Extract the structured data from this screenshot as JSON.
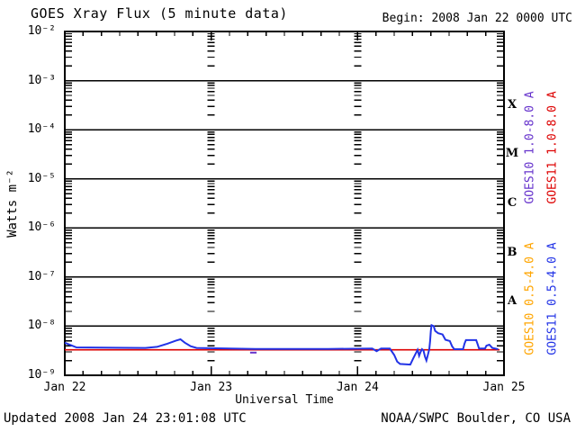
{
  "header": {
    "title": "GOES Xray Flux (5 minute data)",
    "begin_label": "Begin:  2008 Jan 22 0000 UTC"
  },
  "footer": {
    "updated": "Updated 2008 Jan 24 23:01:08 UTC",
    "source": "NOAA/SWPC Boulder, CO USA"
  },
  "colors": {
    "background": "#FFFFFF",
    "frame": "#000000",
    "goes10_long": "#6633CC",
    "goes11_long": "#DD0000",
    "goes10_short": "#FFA500",
    "goes11_short": "#2233E6"
  },
  "chart_data": {
    "type": "line",
    "title": "GOES Xray Flux (5 minute data)",
    "xlabel": "Universal Time",
    "ylabel": "Watts m⁻²",
    "x_axis": {
      "day_labels": [
        "Jan 22",
        "Jan 23",
        "Jan 24",
        "Jan 25"
      ],
      "range_days": 3,
      "minor_tick_hours": 3
    },
    "y_axis": {
      "scale": "log",
      "ylim": [
        1e-09,
        0.01
      ],
      "tick_labels": [
        "10⁻²",
        "10⁻³",
        "10⁻⁴",
        "10⁻⁵",
        "10⁻⁶",
        "10⁻⁷",
        "10⁻⁸",
        "10⁻⁹"
      ],
      "tick_exponents": [
        -2,
        -3,
        -4,
        -5,
        -6,
        -7,
        -8,
        -9
      ]
    },
    "flare_classes": [
      {
        "label": "X",
        "log_center": -3.5
      },
      {
        "label": "M",
        "log_center": -4.5
      },
      {
        "label": "C",
        "log_center": -5.5
      },
      {
        "label": "B",
        "log_center": -6.5
      },
      {
        "label": "A",
        "log_center": -7.5
      }
    ],
    "legend": [
      {
        "label": "GOES10 1.0-8.0 A",
        "color": "#6633CC"
      },
      {
        "label": "GOES11 1.0-8.0 A",
        "color": "#DD0000"
      },
      {
        "label": "GOES10 0.5-4.0 A",
        "color": "#FFA500"
      },
      {
        "label": "GOES11 0.5-4.0 A",
        "color": "#2233E6"
      }
    ],
    "series": [
      {
        "name": "GOES10 1.0-8.0 A",
        "color": "#6633CC",
        "width": 2,
        "points": [
          [
            1.266,
            2.9e-09
          ],
          [
            1.31,
            2.9e-09
          ]
        ]
      },
      {
        "name": "GOES10 0.5-4.0 A",
        "color": "#FFA500",
        "width": 2,
        "points": []
      },
      {
        "name": "GOES11 1.0-8.0 A",
        "color": "#DD0000",
        "width": 1.6,
        "points": [
          [
            0,
            3.3e-09
          ],
          [
            2.97,
            3.3e-09
          ]
        ]
      },
      {
        "name": "GOES11 0.5-4.0 A",
        "color": "#2233E6",
        "width": 2,
        "points": [
          [
            0,
            4.6e-09
          ],
          [
            0.05,
            4e-09
          ],
          [
            0.08,
            3.7e-09
          ],
          [
            0.55,
            3.6e-09
          ],
          [
            0.63,
            3.8e-09
          ],
          [
            0.7,
            4.4e-09
          ],
          [
            0.76,
            5.1e-09
          ],
          [
            0.79,
            5.4e-09
          ],
          [
            0.82,
            4.6e-09
          ],
          [
            0.86,
            3.9e-09
          ],
          [
            0.9,
            3.6e-09
          ],
          [
            1.3,
            3.45e-09
          ],
          [
            1.8,
            3.45e-09
          ],
          [
            2.1,
            3.5e-09
          ],
          [
            2.13,
            3.1e-09
          ],
          [
            2.16,
            3.5e-09
          ],
          [
            2.22,
            3.5e-09
          ],
          [
            2.25,
            2.6e-09
          ],
          [
            2.27,
            1.9e-09
          ],
          [
            2.29,
            1.7e-09
          ],
          [
            2.36,
            1.65e-09
          ],
          [
            2.38,
            2.2e-09
          ],
          [
            2.4,
            2.9e-09
          ],
          [
            2.41,
            3.3e-09
          ],
          [
            2.42,
            2.5e-09
          ],
          [
            2.43,
            3e-09
          ],
          [
            2.44,
            3.4e-09
          ],
          [
            2.45,
            3.2e-09
          ],
          [
            2.46,
            2.4e-09
          ],
          [
            2.47,
            2e-09
          ],
          [
            2.48,
            2.6e-09
          ],
          [
            2.49,
            3.4e-09
          ],
          [
            2.495,
            5e-09
          ],
          [
            2.5,
            8e-09
          ],
          [
            2.505,
            1.05e-08
          ],
          [
            2.52,
            1e-08
          ],
          [
            2.53,
            8e-09
          ],
          [
            2.55,
            7.2e-09
          ],
          [
            2.58,
            6.8e-09
          ],
          [
            2.6,
            5.3e-09
          ],
          [
            2.63,
            5e-09
          ],
          [
            2.645,
            3.9e-09
          ],
          [
            2.66,
            3.4e-09
          ],
          [
            2.72,
            3.4e-09
          ],
          [
            2.73,
            4.4e-09
          ],
          [
            2.74,
            5.2e-09
          ],
          [
            2.81,
            5.2e-09
          ],
          [
            2.82,
            4.3e-09
          ],
          [
            2.83,
            3.5e-09
          ],
          [
            2.87,
            3.5e-09
          ],
          [
            2.88,
            4e-09
          ],
          [
            2.9,
            4.2e-09
          ],
          [
            2.92,
            3.6e-09
          ],
          [
            2.96,
            3.4e-09
          ]
        ]
      }
    ]
  }
}
